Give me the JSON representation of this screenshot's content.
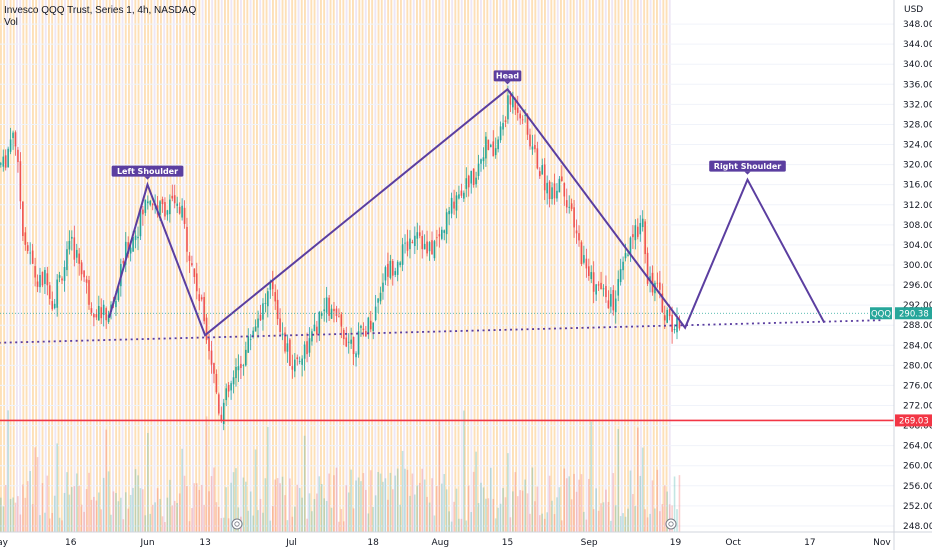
{
  "header": {
    "title": "Invesco QQQ Trust, Series 1, 4h, NASDAQ",
    "vol_label": "Vol"
  },
  "axis": {
    "currency": "USD"
  },
  "colors": {
    "up": "#26a69a",
    "down": "#ef5350",
    "pattern": "#5b3ea0",
    "support": "#f23645",
    "last_price": "#26a69a"
  },
  "chart_data": {
    "type": "candlestick",
    "ylim": [
      246,
      352
    ],
    "y_ticks": [
      248,
      252,
      256,
      260,
      264,
      268,
      272,
      276,
      280,
      284,
      288,
      292,
      296,
      300,
      304,
      308,
      312,
      316,
      320,
      324,
      328,
      332,
      336,
      340,
      344,
      348
    ],
    "x_ticks": [
      "May",
      "16",
      "Jun",
      "13",
      "Jul",
      "18",
      "Aug",
      "15",
      "Sep",
      "19",
      "Oct",
      "17",
      "Nov"
    ],
    "last_price": {
      "symbol": "QQQ",
      "value": 290.38
    },
    "support_level": {
      "value": 269.03
    },
    "pattern": {
      "labels": [
        {
          "text": "Left Shoulder",
          "value": 316
        },
        {
          "text": "Head",
          "value": 335
        },
        {
          "text": "Right Shoulder",
          "value": 317
        }
      ],
      "path": [
        {
          "date": "May 24",
          "value": 289.5
        },
        {
          "date": "Jun 1",
          "value": 316
        },
        {
          "date": "Jun 13",
          "value": 286
        },
        {
          "date": "Aug 15",
          "value": 335
        },
        {
          "date": "Sep 21",
          "value": 287.5
        },
        {
          "date": "Oct 4",
          "value": 317
        },
        {
          "date": "Oct 20",
          "value": 288.5
        }
      ],
      "neckline": [
        {
          "date": "May 1",
          "value": 284.5
        },
        {
          "date": "Nov 1",
          "value": 289
        }
      ]
    },
    "price_series": [
      {
        "date": "May 2",
        "value": 320
      },
      {
        "date": "May 4",
        "value": 328
      },
      {
        "date": "May 6",
        "value": 306
      },
      {
        "date": "May 9",
        "value": 296
      },
      {
        "date": "May 11",
        "value": 298
      },
      {
        "date": "May 12",
        "value": 292
      },
      {
        "date": "May 13",
        "value": 296
      },
      {
        "date": "May 16",
        "value": 304
      },
      {
        "date": "May 18",
        "value": 300
      },
      {
        "date": "May 20",
        "value": 292
      },
      {
        "date": "May 23",
        "value": 290
      },
      {
        "date": "May 25",
        "value": 292
      },
      {
        "date": "May 27",
        "value": 302
      },
      {
        "date": "May 30",
        "value": 308
      },
      {
        "date": "Jun 1",
        "value": 314
      },
      {
        "date": "Jun 3",
        "value": 311
      },
      {
        "date": "Jun 6",
        "value": 312
      },
      {
        "date": "Jun 8",
        "value": 310
      },
      {
        "date": "Jun 10",
        "value": 300
      },
      {
        "date": "Jun 13",
        "value": 288
      },
      {
        "date": "Jun 15",
        "value": 276
      },
      {
        "date": "Jun 16",
        "value": 270
      },
      {
        "date": "Jun 17",
        "value": 273
      },
      {
        "date": "Jun 21",
        "value": 282
      },
      {
        "date": "Jun 23",
        "value": 288
      },
      {
        "date": "Jun 27",
        "value": 296
      },
      {
        "date": "Jun 29",
        "value": 285
      },
      {
        "date": "Jul 1",
        "value": 280
      },
      {
        "date": "Jul 5",
        "value": 285
      },
      {
        "date": "Jul 8",
        "value": 292
      },
      {
        "date": "Jul 12",
        "value": 286
      },
      {
        "date": "Jul 14",
        "value": 284
      },
      {
        "date": "Jul 18",
        "value": 290
      },
      {
        "date": "Jul 20",
        "value": 298
      },
      {
        "date": "Jul 22",
        "value": 300
      },
      {
        "date": "Jul 25",
        "value": 304
      },
      {
        "date": "Jul 27",
        "value": 308
      },
      {
        "date": "Jul 29",
        "value": 302
      },
      {
        "date": "Aug 1",
        "value": 306
      },
      {
        "date": "Aug 4",
        "value": 314
      },
      {
        "date": "Aug 8",
        "value": 318
      },
      {
        "date": "Aug 10",
        "value": 324
      },
      {
        "date": "Aug 12",
        "value": 322
      },
      {
        "date": "Aug 15",
        "value": 332
      },
      {
        "date": "Aug 16",
        "value": 333
      },
      {
        "date": "Aug 18",
        "value": 330
      },
      {
        "date": "Aug 19",
        "value": 326
      },
      {
        "date": "Aug 22",
        "value": 318
      },
      {
        "date": "Aug 24",
        "value": 314
      },
      {
        "date": "Aug 26",
        "value": 318
      },
      {
        "date": "Aug 29",
        "value": 306
      },
      {
        "date": "Aug 31",
        "value": 300
      },
      {
        "date": "Sep 2",
        "value": 296
      },
      {
        "date": "Sep 6",
        "value": 292
      },
      {
        "date": "Sep 8",
        "value": 300
      },
      {
        "date": "Sep 12",
        "value": 310
      },
      {
        "date": "Sep 13",
        "value": 298
      },
      {
        "date": "Sep 15",
        "value": 295
      },
      {
        "date": "Sep 16",
        "value": 292
      },
      {
        "date": "Sep 19",
        "value": 287
      },
      {
        "date": "Sep 20",
        "value": 290.38
      }
    ]
  }
}
